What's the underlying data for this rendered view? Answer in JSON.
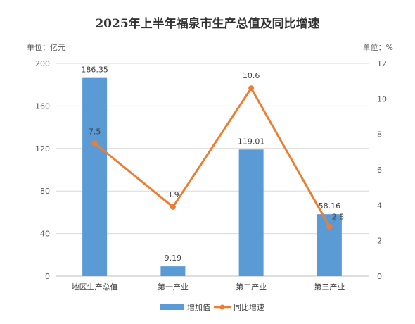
{
  "chart_data": {
    "type": "bar",
    "title": "2025年上半年福泉市生产总值及同比增速",
    "left_unit": "单位：亿元",
    "right_unit": "单位：%",
    "categories": [
      "地区生产总值",
      "第一产业",
      "第二产业",
      "第三产业"
    ],
    "series": [
      {
        "name": "增加值",
        "type": "bar",
        "axis": "left",
        "color": "#5b9bd5",
        "values": [
          186.35,
          9.19,
          119.01,
          58.16
        ]
      },
      {
        "name": "同比增速",
        "type": "line",
        "axis": "right",
        "color": "#ed7d31",
        "values": [
          7.5,
          3.9,
          10.6,
          2.8
        ]
      }
    ],
    "ylim_left": [
      0,
      200
    ],
    "yticks_left": [
      0,
      40,
      80,
      120,
      160,
      200
    ],
    "ylim_right": [
      0,
      12
    ],
    "yticks_right": [
      0,
      2,
      4,
      6,
      8,
      10,
      12
    ],
    "grid": true,
    "legend_position": "bottom"
  }
}
